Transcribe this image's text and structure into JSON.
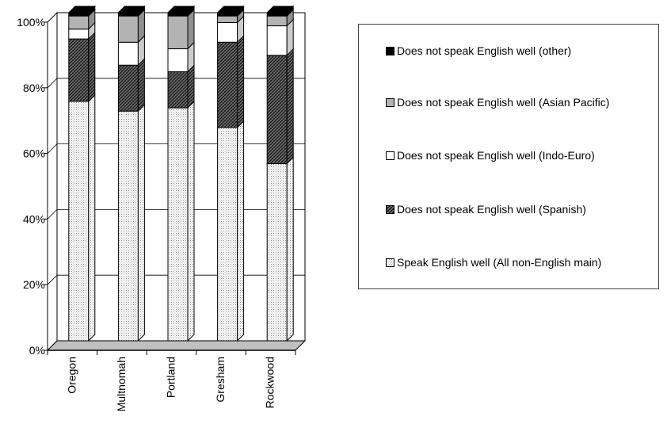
{
  "chart_data": {
    "type": "bar",
    "stacked": true,
    "three_d": true,
    "categories": [
      "Oregon",
      "Multnomah",
      "Portland",
      "Gresham",
      "Rockwood"
    ],
    "series": [
      {
        "name": "Speak English well (All non-English main)",
        "values": [
          73,
          70,
          71,
          65,
          54
        ],
        "pattern": "dots",
        "color": "#e6e6e6"
      },
      {
        "name": "Does not speak English well (Spanish)",
        "values": [
          19,
          14,
          11,
          26,
          33
        ],
        "pattern": "crosshatch",
        "color": "#555555"
      },
      {
        "name": "Does not speak English well (Indo-Euro)",
        "values": [
          3,
          7,
          7,
          6,
          9
        ],
        "pattern": "none",
        "color": "#ffffff"
      },
      {
        "name": "Does not speak English well (Asian Pacific)",
        "values": [
          4,
          8,
          10,
          2,
          3
        ],
        "pattern": "none",
        "color": "#b3b3b3"
      },
      {
        "name": "Does not speak English well (other)",
        "values": [
          1,
          1,
          1,
          1,
          1
        ],
        "pattern": "none",
        "color": "#000000"
      }
    ],
    "y_ticks": [
      "0%",
      "20%",
      "40%",
      "60%",
      "80%",
      "100%"
    ],
    "ylim": [
      0,
      100
    ],
    "grid": true,
    "legend_position": "right",
    "title": "",
    "xlabel": "",
    "ylabel": ""
  }
}
